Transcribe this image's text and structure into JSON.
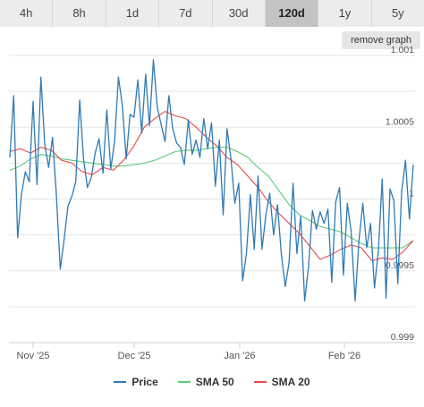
{
  "tabs": [
    {
      "label": "4h",
      "active": false
    },
    {
      "label": "8h",
      "active": false
    },
    {
      "label": "1d",
      "active": false
    },
    {
      "label": "7d",
      "active": false
    },
    {
      "label": "30d",
      "active": false
    },
    {
      "label": "120d",
      "active": true
    },
    {
      "label": "1y",
      "active": false
    },
    {
      "label": "5y",
      "active": false
    }
  ],
  "remove_graph_label": "remove graph",
  "chart_data": {
    "type": "line",
    "x_ticks": [
      "Nov '25",
      "Dec '25",
      "Jan '26",
      "Feb '26"
    ],
    "y_ticks": [
      "1.001",
      "1.0005",
      "1",
      "0.9995",
      "0.999"
    ],
    "ylim": [
      0.999,
      1.001
    ],
    "grid": true,
    "legend_position": "bottom",
    "series": [
      {
        "name": "Price",
        "color": "#2f7ab5",
        "values": [
          1.00029,
          1.00072,
          0.99973,
          1.00003,
          1.00019,
          1.00012,
          1.00068,
          1.0001,
          1.00085,
          1.00038,
          1.00022,
          1.00043,
          1.00003,
          0.99951,
          0.99972,
          0.99995,
          1.00002,
          1.00012,
          1.00069,
          1.00028,
          1.00008,
          1.00015,
          1.00032,
          1.00042,
          1.00018,
          1.00062,
          1.00021,
          1.0004,
          1.00085,
          1.00065,
          1.00028,
          1.00059,
          1.00057,
          1.00083,
          1.00046,
          1.00087,
          1.00051,
          1.00097,
          1.00064,
          1.00052,
          1.0004,
          1.00072,
          1.00049,
          1.00039,
          1.00036,
          1.00024,
          1.00055,
          1.00031,
          1.00041,
          1.00029,
          1.00056,
          1.00035,
          1.00053,
          1.00009,
          1.00041,
          0.99989,
          1.00049,
          1.00028,
          0.99997,
          1.00011,
          0.99943,
          0.99962,
          1.00003,
          0.99965,
          1.00016,
          0.99965,
          0.99989,
          1.00004,
          0.99975,
          0.99996,
          0.99961,
          0.99939,
          0.99956,
          1.00011,
          0.99962,
          0.99988,
          0.99929,
          0.99953,
          0.99992,
          0.99979,
          0.99991,
          0.99983,
          0.99993,
          0.99942,
          0.99998,
          1.00008,
          0.99947,
          0.99997,
          0.99977,
          0.99929,
          0.99971,
          0.99997,
          0.99966,
          0.99983,
          0.99938,
          0.99964,
          1.00014,
          0.99931,
          1.00007,
          0.99999,
          0.99941,
          1.00005,
          1.00027,
          0.99986,
          1.00024
        ]
      },
      {
        "name": "SMA 50",
        "color": "#5bc97a",
        "values": [
          1.0002,
          1.00023,
          1.00028,
          1.00031,
          1.0003,
          1.00028,
          1.00027,
          1.00026,
          1.00025,
          1.00024,
          1.00023,
          1.00023,
          1.00024,
          1.00025,
          1.00027,
          1.0003,
          1.00033,
          1.00034,
          1.00034,
          1.00035,
          1.00036,
          1.00036,
          1.00033,
          1.00029,
          1.00022,
          1.00016,
          1.00006,
          0.99996,
          0.99989,
          0.99985,
          0.99981,
          0.99979,
          0.99977,
          0.99973,
          0.99969,
          0.99966,
          0.99966,
          0.99966,
          0.99966,
          0.99971
        ]
      },
      {
        "name": "SMA 20",
        "color": "#e74b4b",
        "values": [
          1.00033,
          1.00035,
          1.00032,
          1.00036,
          1.00034,
          1.00027,
          1.00025,
          1.00019,
          1.00017,
          1.00022,
          1.0002,
          1.00027,
          1.00037,
          1.0005,
          1.00056,
          1.00061,
          1.00058,
          1.00056,
          1.0005,
          1.00043,
          1.00037,
          1.00029,
          1.00024,
          1.00016,
          1.00008,
          0.99998,
          0.9999,
          0.99983,
          0.99976,
          0.99967,
          0.99958,
          0.99961,
          0.99965,
          0.99968,
          0.99966,
          0.99957,
          0.99959,
          0.99958,
          0.99963,
          0.99971
        ]
      }
    ]
  }
}
